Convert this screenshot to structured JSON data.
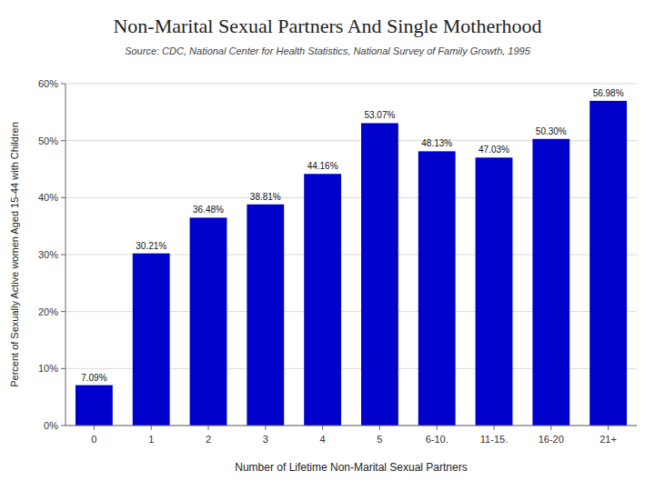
{
  "chart_data": {
    "type": "bar",
    "title": "Non-Marital Sexual Partners And Single Motherhood",
    "subtitle": "Source: CDC, National Center for Health Statistics, National Survey of Family Growth, 1995",
    "xlabel": "Number of Lifetime Non-Marital Sexual Partners",
    "ylabel": "Percent of Sexually Active women Aged 15-44 with Children",
    "categories": [
      "0",
      "1",
      "2",
      "3",
      "4",
      "5",
      "6-10.",
      "11-15.",
      "16-20",
      "21+"
    ],
    "values": [
      7.09,
      30.21,
      36.48,
      38.81,
      44.16,
      53.07,
      48.13,
      47.03,
      50.3,
      56.98
    ],
    "value_labels": [
      "7.09%",
      "30.21%",
      "36.48%",
      "38.81%",
      "44.16%",
      "53.07%",
      "48.13%",
      "47.03%",
      "50.30%",
      "56.98%"
    ],
    "data_labels": true,
    "color": "#0000CC",
    "ylim": [
      0,
      60
    ],
    "yticks": [
      {
        "value": 0,
        "label": "0%"
      },
      {
        "value": 10,
        "label": "10%"
      },
      {
        "value": 20,
        "label": "20%"
      },
      {
        "value": 30,
        "label": "30%"
      },
      {
        "value": 40,
        "label": "40%"
      },
      {
        "value": 50,
        "label": "50%"
      },
      {
        "value": 60,
        "label": "60%"
      }
    ],
    "grid": true
  }
}
